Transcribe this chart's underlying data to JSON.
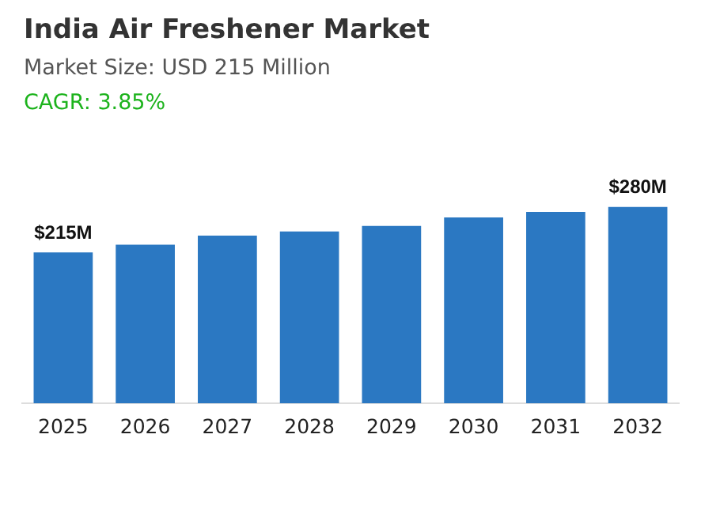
{
  "chart_data": {
    "type": "bar",
    "title": "India Air Freshener Market",
    "subtitle": "Market Size: USD 215 Million",
    "annotations": [
      "CAGR: 3.85%"
    ],
    "categories": [
      "2025",
      "2026",
      "2027",
      "2028",
      "2029",
      "2030",
      "2031",
      "2032"
    ],
    "values": [
      215,
      226,
      239,
      245,
      253,
      265,
      273,
      280
    ],
    "value_labels": [
      "$215M",
      null,
      null,
      null,
      null,
      null,
      null,
      "$280M"
    ],
    "color": "#2b78c2",
    "grid": false,
    "legend": false
  }
}
